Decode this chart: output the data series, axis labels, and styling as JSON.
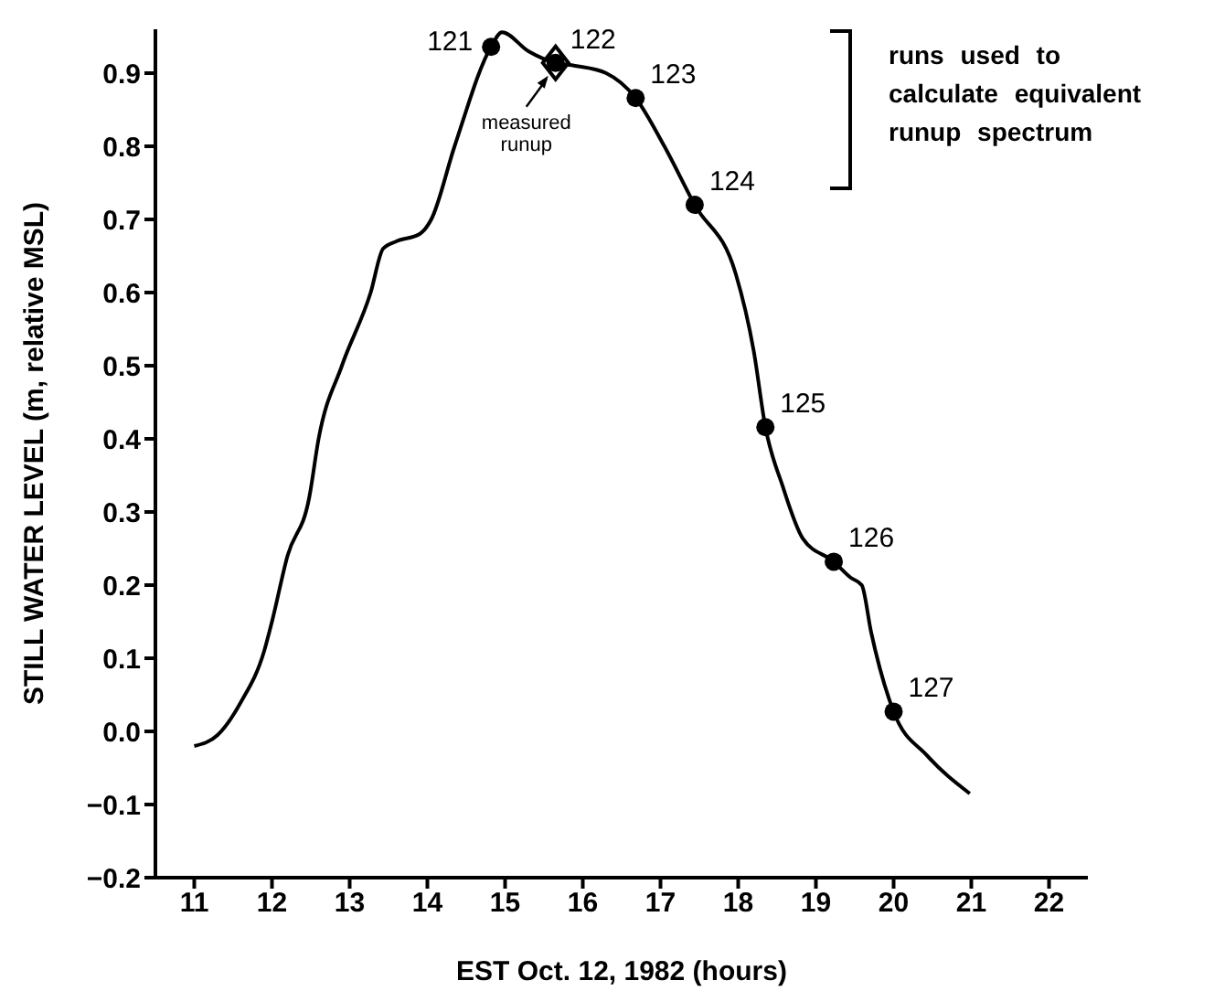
{
  "chart_data": {
    "type": "line",
    "xlabel": "EST Oct. 12, 1982 (hours)",
    "ylabel": "STILL WATER LEVEL (m, relative MSL)",
    "xlim": [
      10.5,
      22.5
    ],
    "xticks": [
      11,
      12,
      13,
      14,
      15,
      16,
      17,
      18,
      19,
      20,
      21,
      22
    ],
    "ylim": [
      -0.2,
      0.96
    ],
    "yticks": [
      {
        "value": -0.2,
        "label": "−0.2"
      },
      {
        "value": -0.1,
        "label": "−0.1"
      },
      {
        "value": 0,
        "label": "0.0"
      },
      0.1,
      0.2,
      0.3,
      0.4,
      0.5,
      0.6,
      0.7,
      0.8,
      0.9
    ],
    "grid": false,
    "series": [
      {
        "color": "#000000",
        "marker": "none",
        "line_style": "solid",
        "x": [
          11,
          11.3,
          11.6,
          11.9,
          12,
          12.2,
          12.48,
          12.6,
          12.9,
          13.27,
          13.43,
          13.6,
          13.9,
          14.05,
          14.35,
          14.82,
          14.96,
          15.3,
          15.65,
          15.9,
          16.3,
          16.68,
          17.05,
          17.44,
          17.97,
          18.2,
          18.35,
          18.57,
          18.83,
          19.23,
          19.45,
          19.59,
          19.71,
          20,
          20.43,
          20.98
        ],
        "values": [
          -0.02,
          -0.005,
          0.04,
          0.11,
          0.15,
          0.24,
          0.32,
          0.4,
          0.5,
          0.6,
          0.66,
          0.67,
          0.68,
          0.7,
          0.8,
          0.936,
          0.956,
          0.93,
          0.914,
          0.91,
          0.9,
          0.866,
          0.8,
          0.72,
          0.625,
          0.52,
          0.416,
          0.336,
          0.264,
          0.232,
          0.21,
          0.2,
          0.136,
          0.027,
          -0.033,
          -0.085
        ]
      },
      {
        "type": "scatter",
        "color": "#000000",
        "marker": "circle",
        "x": [
          14.82,
          15.65,
          16.68,
          17.44,
          18.35,
          19.23,
          20
        ],
        "values": [
          0.936,
          0.914,
          0.866,
          0.72,
          0.416,
          0.232,
          0.027
        ]
      },
      {
        "type": "scatter",
        "color": "#000000",
        "marker": "diamond",
        "x": [
          15.65
        ],
        "values": [
          0.914
        ]
      }
    ],
    "annotations": [
      {
        "text": "121",
        "x": 14.82,
        "y": 0.936
      },
      {
        "text": "122",
        "x": 15.65,
        "y": 0.914
      },
      {
        "text": "123",
        "x": 16.68,
        "y": 0.866
      },
      {
        "text": "124",
        "x": 17.44,
        "y": 0.72
      },
      {
        "text": "125",
        "x": 18.35,
        "y": 0.416
      },
      {
        "text": "126",
        "x": 19.23,
        "y": 0.232
      },
      {
        "text": "127",
        "x": 20,
        "y": 0.027
      },
      {
        "text": "measured runup",
        "x": 15.65,
        "y": 0.914
      },
      "runs used to calculate equivalent runup spectrum"
    ]
  }
}
